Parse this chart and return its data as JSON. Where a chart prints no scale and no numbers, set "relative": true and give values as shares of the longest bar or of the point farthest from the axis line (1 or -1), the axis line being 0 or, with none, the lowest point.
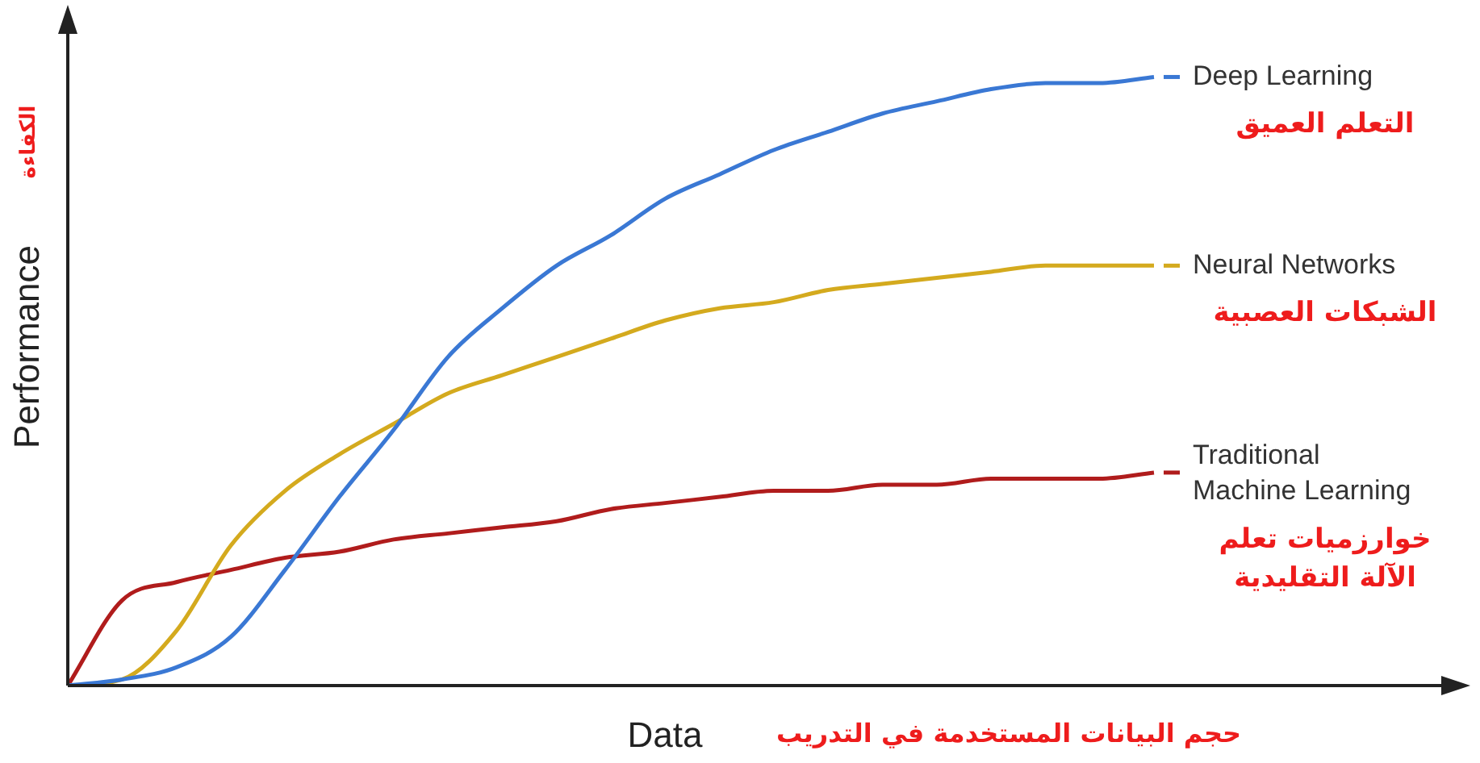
{
  "chart_data": {
    "type": "line",
    "relative": true,
    "xlabel": "Data",
    "ylabel": "Performance",
    "legend": "right",
    "categories": [
      null,
      null,
      null,
      null,
      null,
      null,
      null,
      null,
      null,
      null,
      null,
      null,
      null,
      null,
      null,
      null,
      null,
      null,
      null,
      null,
      null
    ],
    "series": [
      {
        "name": "Deep Learning",
        "color": "#3a78d4",
        "values": [
          0,
          0.01,
          0.03,
          0.08,
          0.19,
          0.31,
          0.42,
          0.54,
          0.62,
          0.69,
          0.74,
          0.8,
          0.84,
          0.88,
          0.91,
          0.94,
          0.96,
          0.98,
          0.99,
          0.99,
          1
        ]
      },
      {
        "name": "Neural Networks",
        "color": "#d4aa1e",
        "values": [
          0,
          0.01,
          0.09,
          0.23,
          0.32,
          0.38,
          0.43,
          0.48,
          0.51,
          0.54,
          0.57,
          0.6,
          0.62,
          0.63,
          0.65,
          0.66,
          0.67,
          0.68,
          0.69,
          0.69,
          0.69
        ]
      },
      {
        "name": "Traditional Machine Learning",
        "color": "#b01c1c",
        "values": [
          0,
          0.14,
          0.17,
          0.19,
          0.21,
          0.22,
          0.24,
          0.25,
          0.26,
          0.27,
          0.29,
          0.3,
          0.31,
          0.32,
          0.32,
          0.33,
          0.33,
          0.34,
          0.34,
          0.34,
          0.35
        ]
      }
    ],
    "annotations": [
      "التعلم العميق",
      "الشبكات العصبية",
      "خوارزميات تعلم الآلة التقليدية",
      "حجم البيانات المستخدمة في التدريب",
      "الكفاءة"
    ]
  }
}
